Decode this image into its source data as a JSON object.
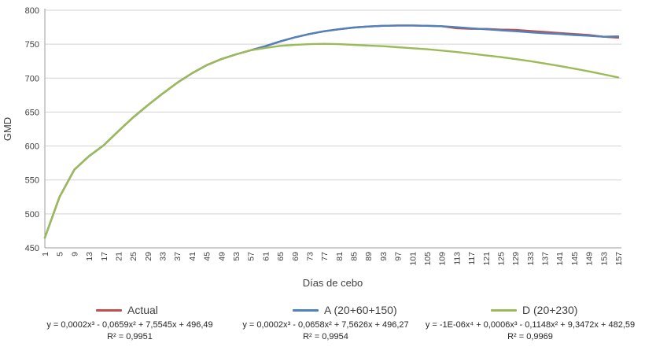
{
  "chart_data": {
    "type": "line",
    "title": "",
    "xlabel": "Días de cebo",
    "ylabel": "GMD",
    "ylim": [
      450,
      800
    ],
    "y_tick_step": 50,
    "grid": true,
    "legend_position": "bottom",
    "x": [
      1,
      5,
      9,
      13,
      17,
      21,
      25,
      29,
      33,
      37,
      41,
      45,
      49,
      53,
      57,
      61,
      65,
      69,
      73,
      77,
      81,
      85,
      89,
      93,
      97,
      101,
      105,
      109,
      113,
      117,
      121,
      125,
      129,
      133,
      137,
      141,
      145,
      149,
      153,
      157
    ],
    "series": [
      {
        "name": "Actual",
        "color": "#C0504D",
        "values": [
          465,
          525,
          565,
          585,
          601,
          622,
          642,
          660,
          677,
          693,
          707,
          719,
          728,
          735,
          741,
          747,
          754,
          760,
          765,
          769,
          772,
          774.5,
          776,
          777,
          777.5,
          777.5,
          777,
          776.5,
          773.5,
          772.5,
          772.5,
          771.5,
          771,
          769.5,
          768,
          766.5,
          765,
          763.5,
          761,
          759.5
        ],
        "equation": "y = 0,0002x³ - 0,0659x² + 7,5545x + 496,49",
        "r2": "R² = 0,9951"
      },
      {
        "name": "A (20+60+150)",
        "color": "#4F81BD",
        "values": [
          465,
          525,
          565,
          585,
          601,
          622,
          642,
          660,
          677,
          693,
          707,
          719,
          728,
          735,
          741,
          747,
          754,
          760,
          765,
          769,
          772,
          774.5,
          776,
          777,
          777.5,
          777.5,
          777,
          776.5,
          775,
          773.5,
          772,
          770.5,
          769,
          767.5,
          766,
          765,
          763.5,
          762.5,
          761,
          761.5
        ],
        "equation": "y = 0,0002x³ - 0,0658x² + 7,5626x + 496,27",
        "r2": "R² = 0,9954"
      },
      {
        "name": "D (20+230)",
        "color": "#9BBB59",
        "values": [
          465,
          525,
          565,
          585,
          601,
          622,
          642,
          660,
          677,
          693,
          707,
          719,
          728,
          735,
          741,
          744.5,
          747.5,
          749,
          750,
          750.5,
          750,
          749,
          748,
          747,
          745.5,
          744,
          742.5,
          740.5,
          738.5,
          736,
          733.5,
          731,
          728,
          725,
          721.5,
          718,
          714,
          710,
          705.5,
          701
        ],
        "equation": "y = -1E-06x⁴ + 0,0006x³ - 0,1148x² + 9,3472x + 482,59",
        "r2": "R² = 0,9969"
      }
    ]
  }
}
